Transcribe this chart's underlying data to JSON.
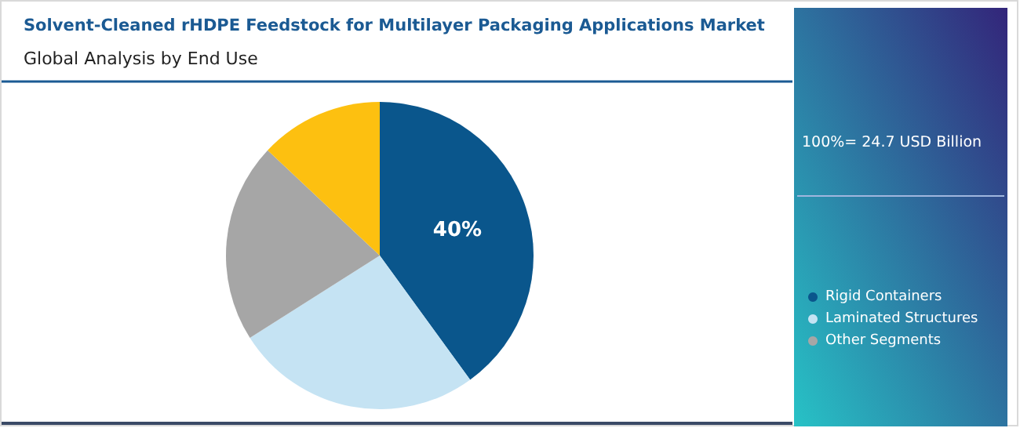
{
  "chart_data": {
    "type": "pie",
    "title": "Solvent-Cleaned rHDPE Feedstock for Multilayer Packaging Applications Market",
    "subtitle": "Global Analysis by End Use",
    "categories": [
      "Rigid Containers",
      "Laminated Structures",
      "Other Segments",
      null
    ],
    "values": [
      40,
      26,
      21,
      13
    ],
    "colors": [
      "#0a568c",
      "#c5e3f3",
      "#a6a6a6",
      "#fdc010"
    ],
    "value_labels": [
      "40%",
      null,
      null,
      null
    ],
    "annotations": [
      "100%= 24.7 USD Billion"
    ],
    "legend": "right"
  }
}
